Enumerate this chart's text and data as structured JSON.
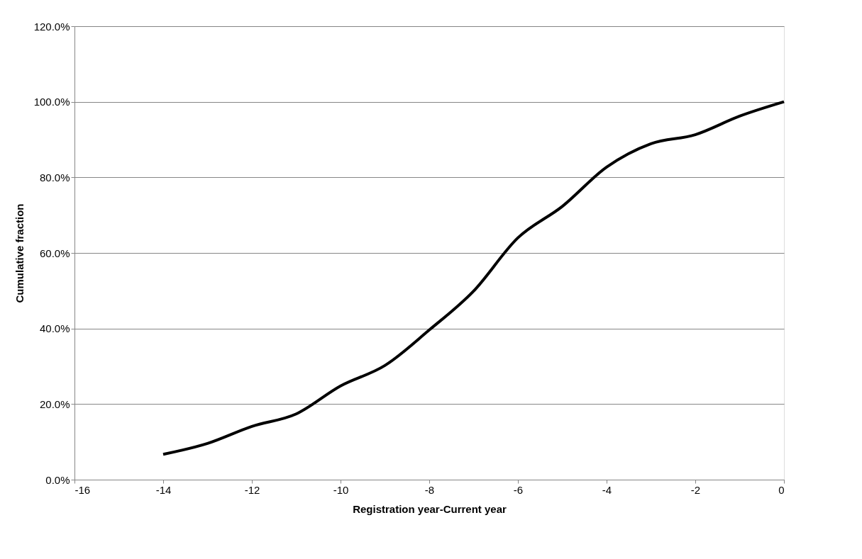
{
  "chart_data": {
    "type": "line",
    "xlabel": "Registration year-Current year",
    "ylabel": "Cumulative fraction",
    "x": [
      -14,
      -13,
      -12,
      -11,
      -10,
      -9,
      -8,
      -7,
      -6,
      -5,
      -4,
      -3,
      -2,
      -1,
      0
    ],
    "series": [
      {
        "color": "#000000",
        "values": [
          6.7,
          9.6,
          14.1,
          17.4,
          24.8,
          30.2,
          39.6,
          49.9,
          64.0,
          72.3,
          82.7,
          88.9,
          91.3,
          96.2,
          100.0
        ]
      }
    ],
    "xlim": [
      -16,
      0
    ],
    "xticks": [
      -16,
      -14,
      -12,
      -10,
      -8,
      -6,
      -4,
      -2,
      0
    ],
    "ylim": [
      0,
      120
    ],
    "yticks": [
      {
        "value": 0,
        "label": "0.0%"
      },
      {
        "value": 20,
        "label": "20.0%"
      },
      {
        "value": 40,
        "label": "40.0%"
      },
      {
        "value": 60,
        "label": "60.0%"
      },
      {
        "value": 80,
        "label": "80.0%"
      },
      {
        "value": 100,
        "label": "100.0%"
      },
      {
        "value": 120,
        "label": "120.0%"
      }
    ],
    "grid": "y",
    "marker": "none",
    "line_style": "solid"
  }
}
